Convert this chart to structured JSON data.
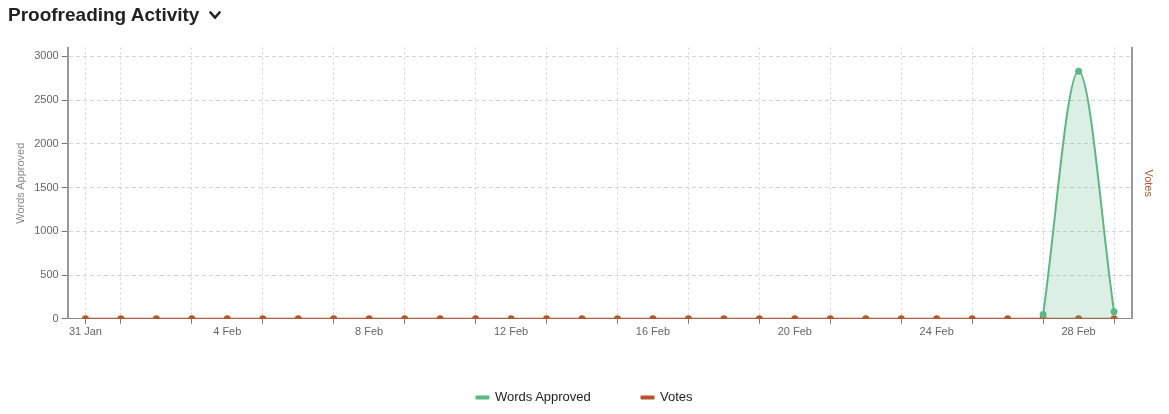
{
  "chart_data": {
    "type": "line",
    "title": "Proofreading Activity",
    "ylabel": "Words Approved",
    "y2label": "Votes",
    "categories": [
      "31 Jan",
      null,
      null,
      null,
      "4 Feb",
      null,
      null,
      null,
      "8 Feb",
      null,
      null,
      null,
      "12 Feb",
      null,
      null,
      null,
      "16 Feb",
      null,
      null,
      null,
      "20 Feb",
      null,
      null,
      null,
      "24 Feb",
      null,
      null,
      null,
      "28 Feb",
      null
    ],
    "series": [
      {
        "name": "Words Approved",
        "type": "area",
        "color": "#5cb784",
        "values": [
          null,
          null,
          null,
          null,
          null,
          null,
          null,
          null,
          null,
          null,
          null,
          null,
          null,
          null,
          null,
          null,
          null,
          null,
          null,
          null,
          null,
          null,
          null,
          null,
          null,
          null,
          null,
          50,
          2830,
          80
        ]
      },
      {
        "name": "Votes",
        "type": "line",
        "color": "#b5562a",
        "values": [
          0,
          0,
          0,
          0,
          0,
          0,
          0,
          0,
          0,
          0,
          0,
          0,
          0,
          0,
          0,
          0,
          0,
          0,
          0,
          0,
          0,
          0,
          0,
          0,
          0,
          0,
          0,
          0,
          0,
          0
        ]
      }
    ],
    "ylim": [
      0,
      3100
    ],
    "yticks": [
      0,
      500,
      1000,
      1500,
      2000,
      2500,
      3000
    ],
    "grid": true,
    "legend": "bottom",
    "marker": "circle",
    "line_style": "solid"
  }
}
